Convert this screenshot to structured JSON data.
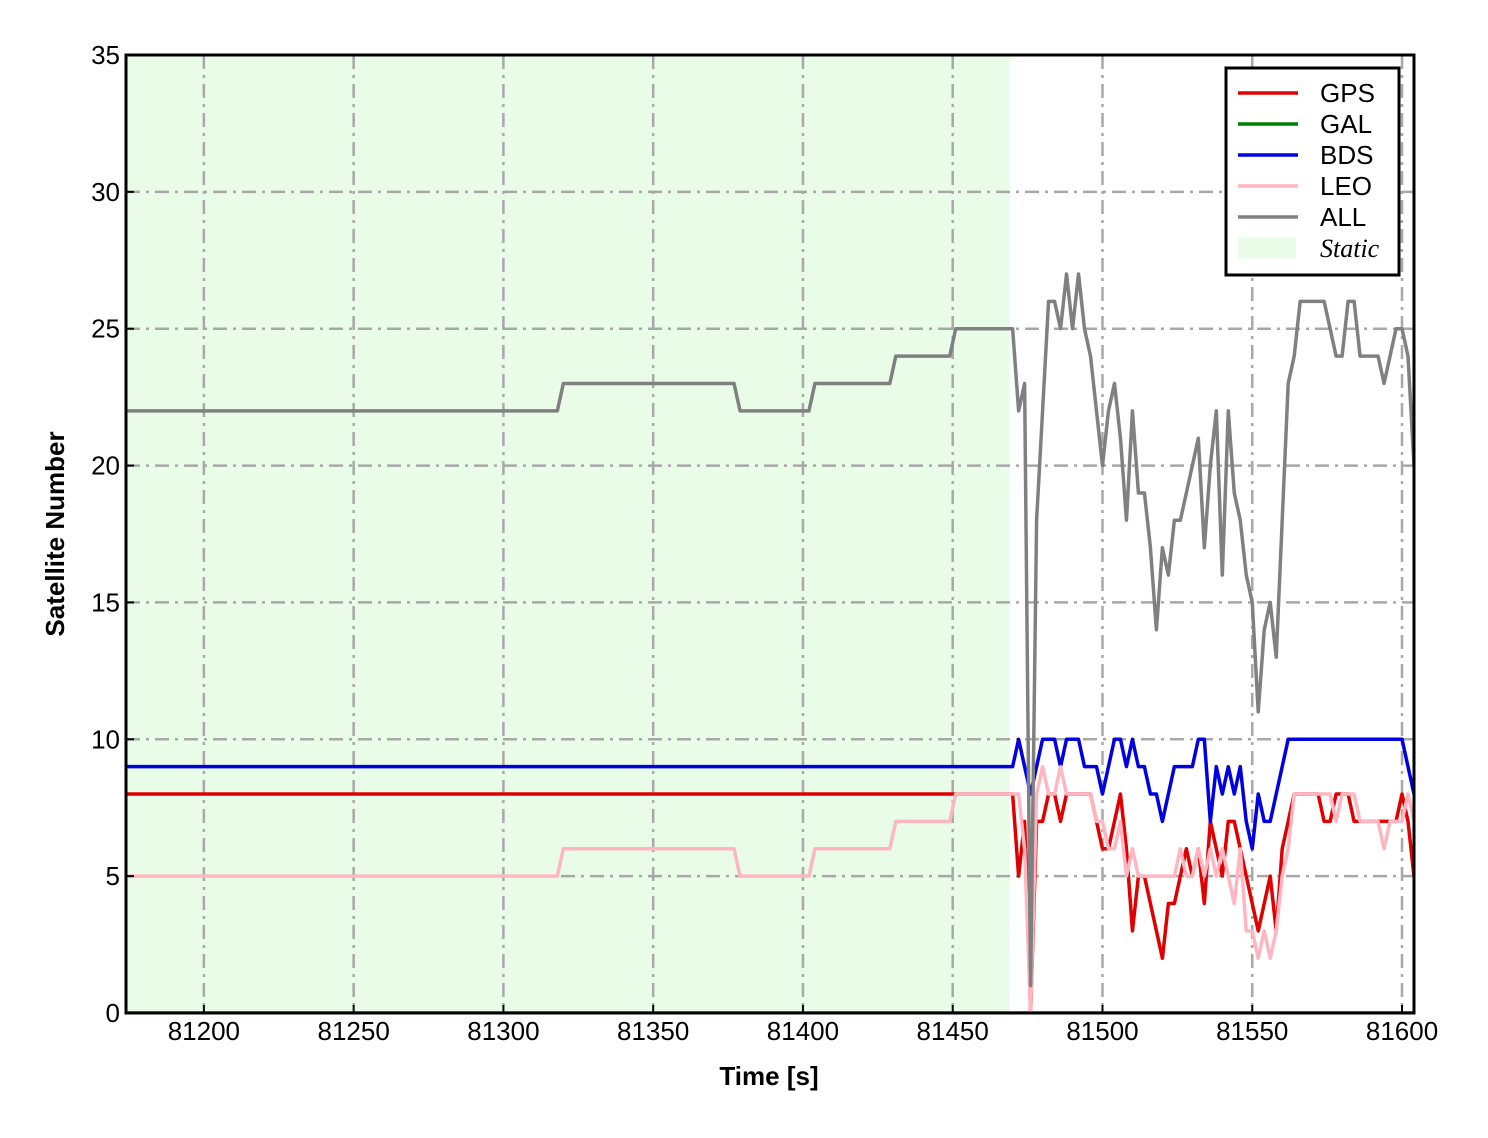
{
  "chart_data": {
    "type": "line",
    "x_label": "Time [s]",
    "y_label": "Satellite Number",
    "xlim": [
      81174,
      81604
    ],
    "ylim": [
      0,
      35
    ],
    "xticks": [
      81200,
      81250,
      81300,
      81350,
      81400,
      81450,
      81500,
      81550,
      81600
    ],
    "yticks": [
      0,
      5,
      10,
      15,
      20,
      25,
      30,
      35
    ],
    "grid": true,
    "legend": "upper right",
    "shaded_region": {
      "x": [
        81174,
        81469
      ],
      "label": "Static",
      "color": "#e8fce8"
    },
    "x": [
      81174,
      81318,
      81320,
      81377,
      81379,
      81402,
      81404,
      81429,
      81431,
      81449,
      81451,
      81468,
      81470,
      81472,
      81474,
      81476,
      81478,
      81480,
      81482,
      81484,
      81486,
      81488,
      81490,
      81492,
      81494,
      81496,
      81498,
      81500,
      81502,
      81504,
      81506,
      81508,
      81510,
      81512,
      81514,
      81516,
      81518,
      81520,
      81522,
      81524,
      81526,
      81528,
      81530,
      81532,
      81534,
      81536,
      81538,
      81540,
      81542,
      81544,
      81546,
      81548,
      81550,
      81552,
      81554,
      81556,
      81558,
      81560,
      81562,
      81564,
      81566,
      81568,
      81570,
      81572,
      81574,
      81576,
      81578,
      81580,
      81582,
      81584,
      81586,
      81588,
      81590,
      81592,
      81594,
      81596,
      81598,
      81600,
      81602,
      81604
    ],
    "series": [
      {
        "name": "GPS",
        "color": "#e00000",
        "values": [
          8,
          8,
          8,
          8,
          8,
          8,
          8,
          8,
          8,
          8,
          8,
          8,
          8,
          5,
          7,
          0,
          7,
          7,
          8,
          8,
          7,
          8,
          8,
          8,
          8,
          8,
          7,
          6,
          6,
          7,
          8,
          6,
          3,
          5,
          5,
          4,
          3,
          2,
          4,
          4,
          5,
          6,
          5,
          6,
          4,
          7,
          6,
          5,
          7,
          7,
          6,
          5,
          4,
          3,
          4,
          5,
          3,
          6,
          7,
          8,
          8,
          8,
          8,
          8,
          7,
          7,
          8,
          8,
          8,
          7,
          7,
          7,
          7,
          7,
          7,
          7,
          7,
          8,
          7,
          5
        ]
      },
      {
        "name": "GAL",
        "color": "#008000",
        "values": [
          0,
          0,
          0,
          0,
          0,
          0,
          0,
          0,
          0,
          0,
          0,
          0,
          0,
          0,
          0,
          0,
          0,
          0,
          0,
          0,
          0,
          0,
          0,
          0,
          0,
          0,
          0,
          0,
          0,
          0,
          0,
          0,
          0,
          0,
          0,
          0,
          0,
          0,
          0,
          0,
          0,
          0,
          0,
          0,
          0,
          0,
          0,
          0,
          0,
          0,
          0,
          0,
          0,
          0,
          0,
          0,
          0,
          0,
          0,
          0,
          0,
          0,
          0,
          0,
          0,
          0,
          0,
          0,
          0,
          0,
          0,
          0,
          0,
          0,
          0,
          0,
          0,
          0,
          0,
          0
        ]
      },
      {
        "name": "BDS",
        "color": "#0000e0",
        "values": [
          9,
          9,
          9,
          9,
          9,
          9,
          9,
          9,
          9,
          9,
          9,
          9,
          9,
          10,
          9,
          8,
          9,
          10,
          10,
          10,
          9,
          10,
          10,
          10,
          9,
          9,
          9,
          8,
          9,
          10,
          10,
          9,
          10,
          9,
          9,
          8,
          8,
          7,
          8,
          9,
          9,
          9,
          9,
          10,
          10,
          7,
          9,
          8,
          9,
          8,
          9,
          7,
          6,
          8,
          7,
          7,
          8,
          9,
          10,
          10,
          10,
          10,
          10,
          10,
          10,
          10,
          10,
          10,
          10,
          10,
          10,
          10,
          10,
          10,
          10,
          10,
          10,
          10,
          9,
          8
        ]
      },
      {
        "name": "LEO",
        "color": "#ffb6c1",
        "values": [
          5,
          5,
          6,
          6,
          5,
          5,
          6,
          6,
          7,
          7,
          8,
          8,
          8,
          8,
          6,
          0,
          8,
          9,
          8,
          8,
          9,
          8,
          8,
          8,
          8,
          8,
          7,
          7,
          6,
          6,
          7,
          5,
          6,
          5,
          5,
          5,
          5,
          5,
          5,
          5,
          6,
          5,
          5,
          6,
          5,
          6,
          5,
          6,
          5,
          4,
          6,
          3,
          3,
          2,
          3,
          2,
          3,
          5,
          6,
          8,
          8,
          8,
          8,
          8,
          8,
          8,
          7,
          8,
          8,
          8,
          7,
          7,
          7,
          7,
          6,
          7,
          7,
          7,
          8,
          7
        ]
      },
      {
        "name": "ALL",
        "color": "#808080",
        "values": [
          22,
          22,
          23,
          23,
          22,
          22,
          23,
          23,
          24,
          24,
          25,
          25,
          25,
          22,
          23,
          1,
          18,
          22,
          26,
          26,
          25,
          27,
          25,
          27,
          25,
          24,
          22,
          20,
          22,
          23,
          21,
          18,
          22,
          19,
          19,
          17,
          14,
          17,
          16,
          18,
          18,
          19,
          20,
          21,
          17,
          20,
          22,
          16,
          22,
          19,
          18,
          16,
          15,
          11,
          14,
          15,
          13,
          18,
          23,
          24,
          26,
          26,
          26,
          26,
          26,
          25,
          24,
          24,
          26,
          26,
          24,
          24,
          24,
          24,
          23,
          24,
          25,
          25,
          24,
          20
        ]
      }
    ]
  }
}
